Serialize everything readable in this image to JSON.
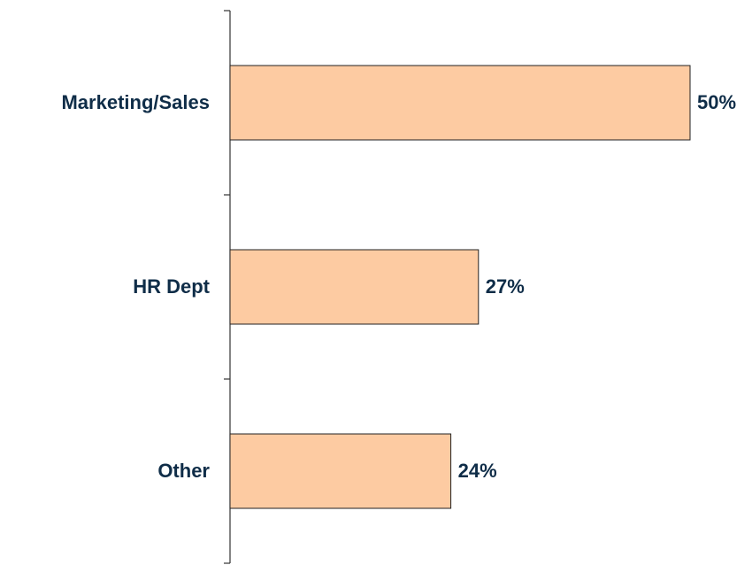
{
  "chart_data": {
    "type": "barh",
    "categories": [
      "Marketing/Sales",
      "HR Dept",
      "Other"
    ],
    "values": [
      50,
      27,
      24
    ],
    "value_labels": [
      "50%",
      "27%",
      "24%"
    ],
    "color": "#fdcba2"
  }
}
